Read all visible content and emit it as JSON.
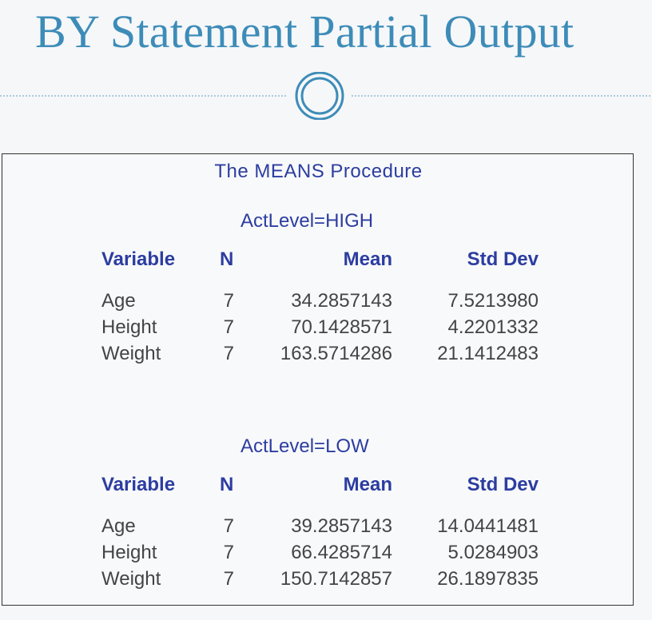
{
  "slide": {
    "title": "BY Statement Partial Output"
  },
  "output": {
    "procedure_title": "The MEANS Procedure",
    "columns": [
      "Variable",
      "N",
      "Mean",
      "Std Dev"
    ],
    "groups": [
      {
        "by_label": "ActLevel=HIGH",
        "rows": [
          [
            "Age",
            "7",
            "34.2857143",
            "7.5213980"
          ],
          [
            "Height",
            "7",
            "70.1428571",
            "4.2201332"
          ],
          [
            "Weight",
            "7",
            "163.5714286",
            "21.1412483"
          ]
        ]
      },
      {
        "by_label": "ActLevel=LOW",
        "rows": [
          [
            "Age",
            "7",
            "39.2857143",
            "14.0441481"
          ],
          [
            "Height",
            "7",
            "66.4285714",
            "5.0284903"
          ],
          [
            "Weight",
            "7",
            "150.7142857",
            "26.1897835"
          ]
        ]
      }
    ]
  },
  "colors": {
    "title": "#3d8cb8",
    "heading_text": "#2c3da0",
    "body_text": "#444444"
  }
}
